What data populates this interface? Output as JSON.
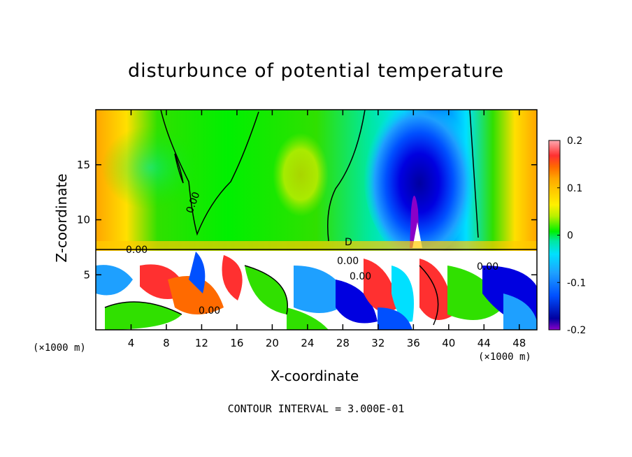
{
  "chart_data": {
    "type": "heatmap",
    "title": "disturbunce of potential temperature",
    "xlabel": "X-coordinate",
    "ylabel": "Z-coordinate",
    "x_unit": "(×1000 m)",
    "x_unit_right": "(×1000 m)",
    "xlim": [
      0,
      50
    ],
    "ylim": [
      0,
      20
    ],
    "x_ticks": [
      4,
      8,
      12,
      16,
      20,
      24,
      28,
      32,
      36,
      40,
      44,
      48
    ],
    "y_ticks": [
      5,
      10,
      15
    ],
    "colorbar": {
      "range": [
        -0.2,
        0.2
      ],
      "tick_labels": [
        "0.2",
        "0.1",
        "0",
        "-0.1",
        "-0.2"
      ],
      "tick_values": [
        0.2,
        0.1,
        0,
        -0.1,
        -0.2
      ],
      "colors": [
        "#ffa8b0",
        "#ff3030",
        "#ff6a00",
        "#ffa500",
        "#ffcc00",
        "#fff000",
        "#b8f000",
        "#30e000",
        "#00f000",
        "#00e8a0",
        "#00e0ff",
        "#1ea0ff",
        "#0050ff",
        "#0000e0",
        "#0000a0",
        "#8a00c8"
      ]
    },
    "contour_labels": [
      "0.00",
      "0.00",
      "0.00",
      "0.00",
      "0.00",
      "0.00",
      "D"
    ],
    "footer": "CONTOUR INTERVAL = 3.000E-01"
  }
}
